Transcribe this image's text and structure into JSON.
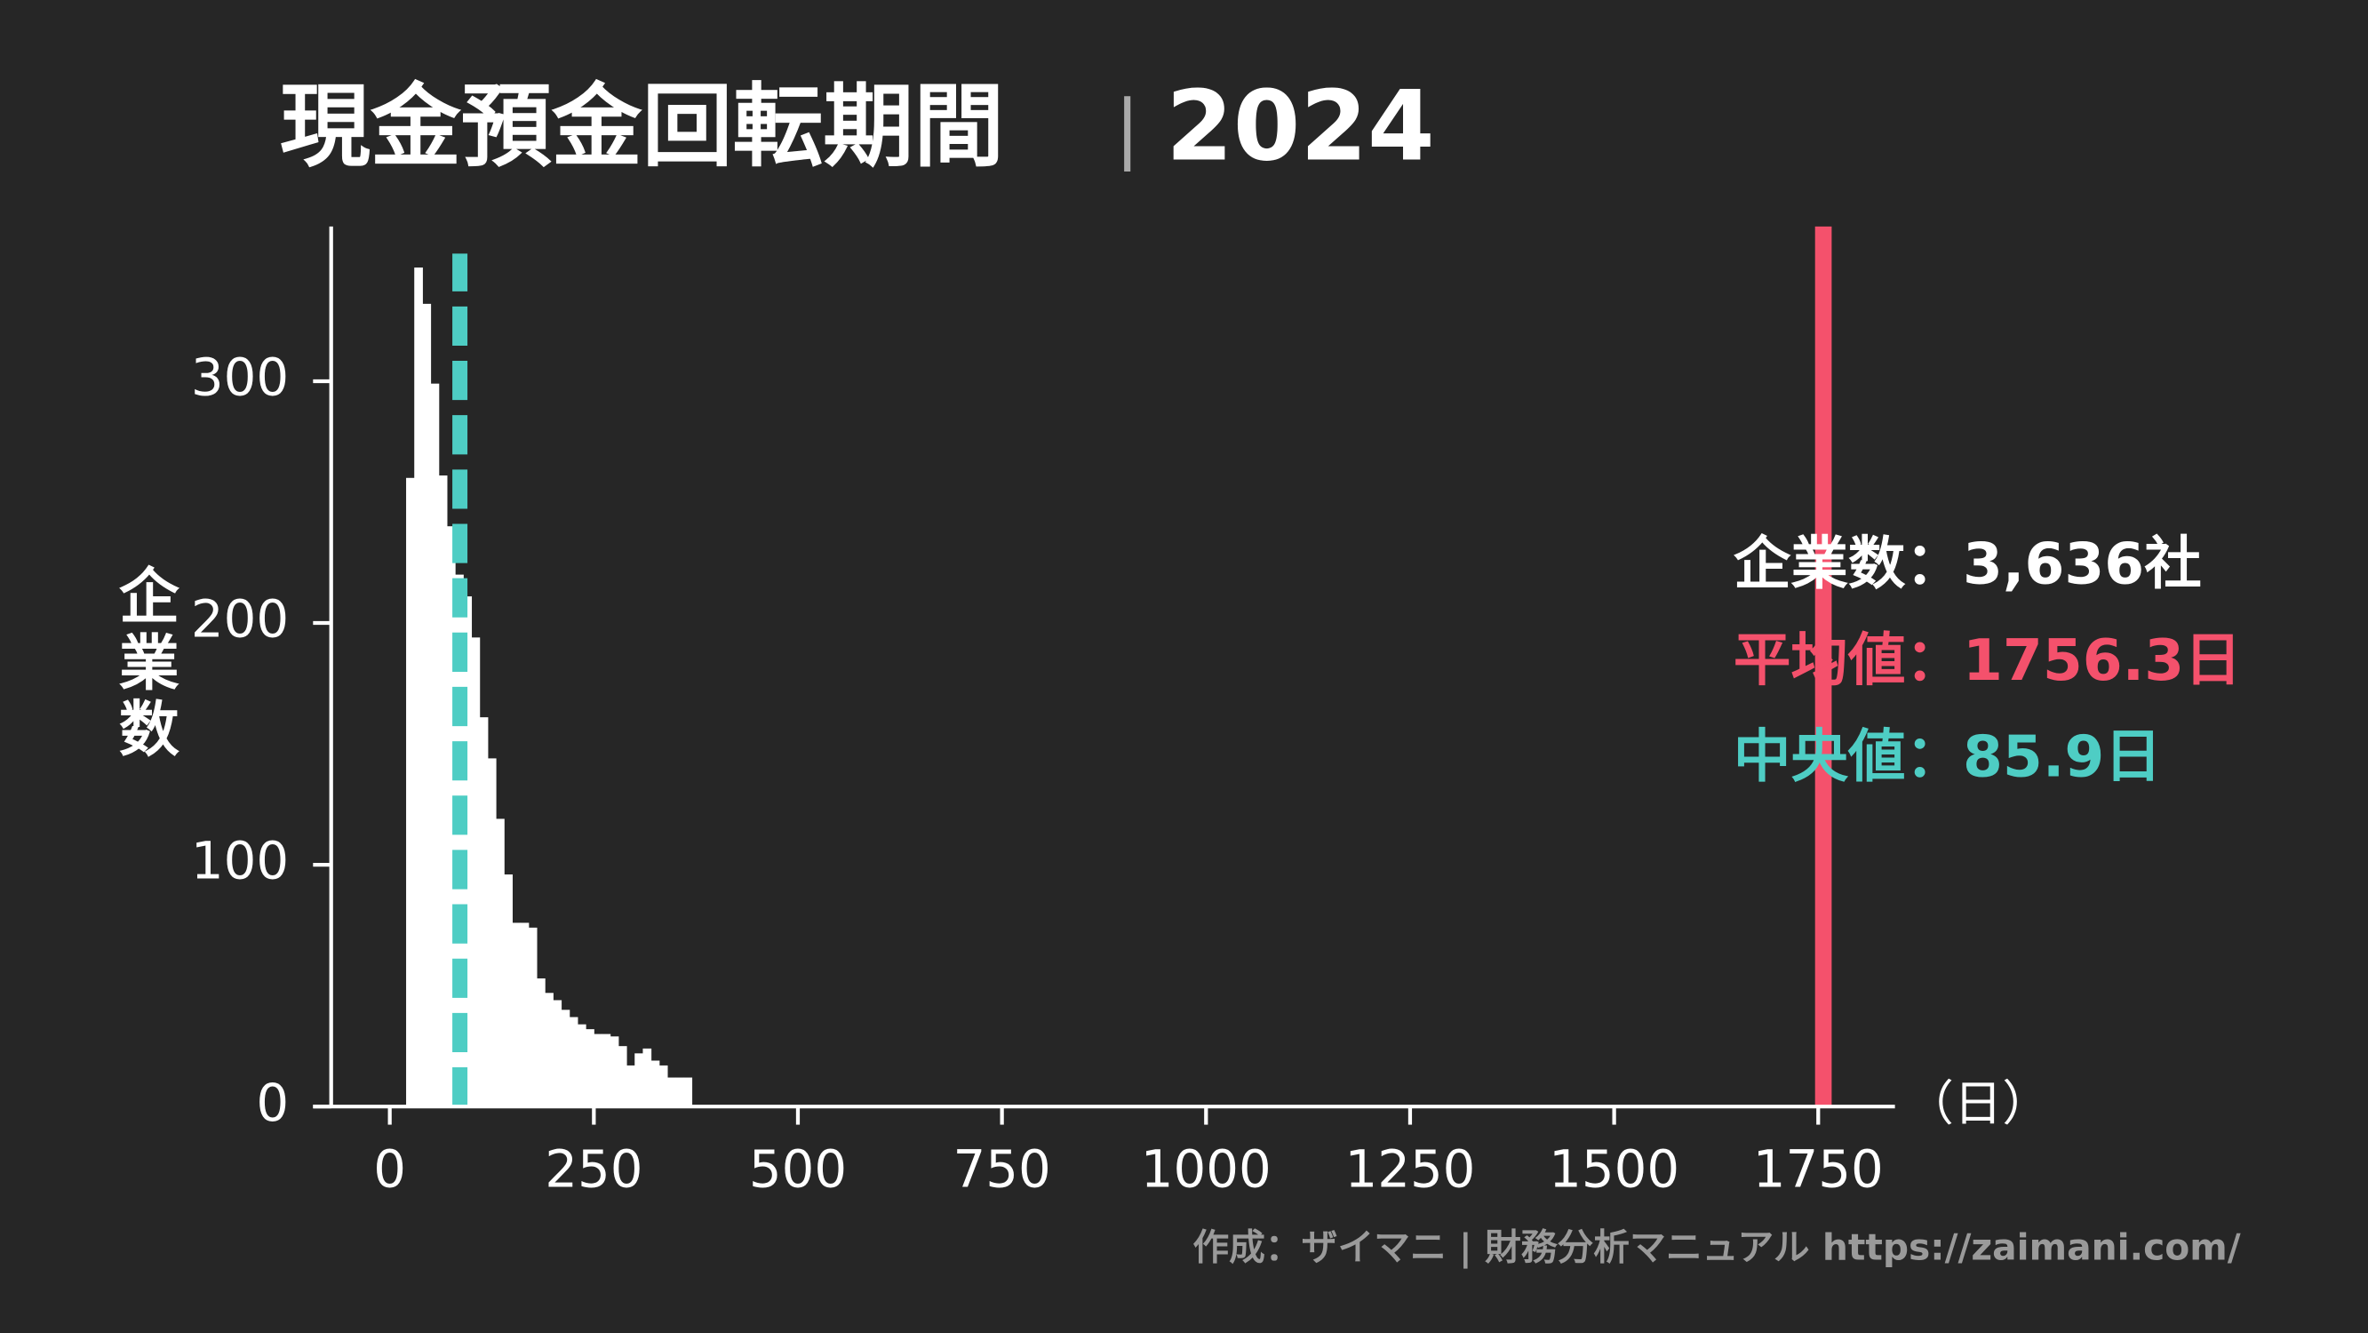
{
  "chart_data": {
    "type": "histogram",
    "title": "現金預金回転期間",
    "separator": "|",
    "year": "2024",
    "ylabel": "企業数",
    "xunit": "（日）",
    "bins": [
      20,
      30,
      40,
      50,
      60,
      70,
      80,
      90,
      100,
      110,
      120,
      130,
      140,
      150,
      160,
      170,
      180,
      190,
      200,
      210,
      220,
      230,
      240,
      250,
      260,
      270,
      280,
      290,
      300,
      310,
      320,
      330,
      340,
      350,
      360,
      370
    ],
    "values": [
      260,
      347,
      332,
      299,
      261,
      240,
      220,
      211,
      194,
      161,
      144,
      119,
      96,
      76,
      76,
      74,
      53,
      47,
      44,
      40,
      37,
      34,
      32,
      30,
      30,
      29,
      25,
      17,
      22,
      24,
      19,
      17,
      12,
      12,
      12
    ],
    "color": "#ffffff",
    "xlim": [
      -94,
      1844
    ],
    "ylim": [
      0,
      364
    ],
    "xticks": [
      0,
      250,
      500,
      750,
      1000,
      1250,
      1500,
      1750
    ],
    "yticks": [
      0,
      100,
      200,
      300
    ],
    "mean_line": {
      "value": 1756.3,
      "color": "#f4516c"
    },
    "median_line": {
      "value": 85.9,
      "color": "#4ecdc4"
    },
    "annotations": [
      {
        "text": "企業数：3,636社",
        "color": "#ffffff"
      },
      {
        "text": "平均値：1756.3日",
        "color": "#f4516c"
      },
      {
        "text": "中央値：85.9日",
        "color": "#4ecdc4"
      }
    ],
    "footer": "作成：ザイマニ | 財務分析マニュアル https://zaimani.com/"
  }
}
